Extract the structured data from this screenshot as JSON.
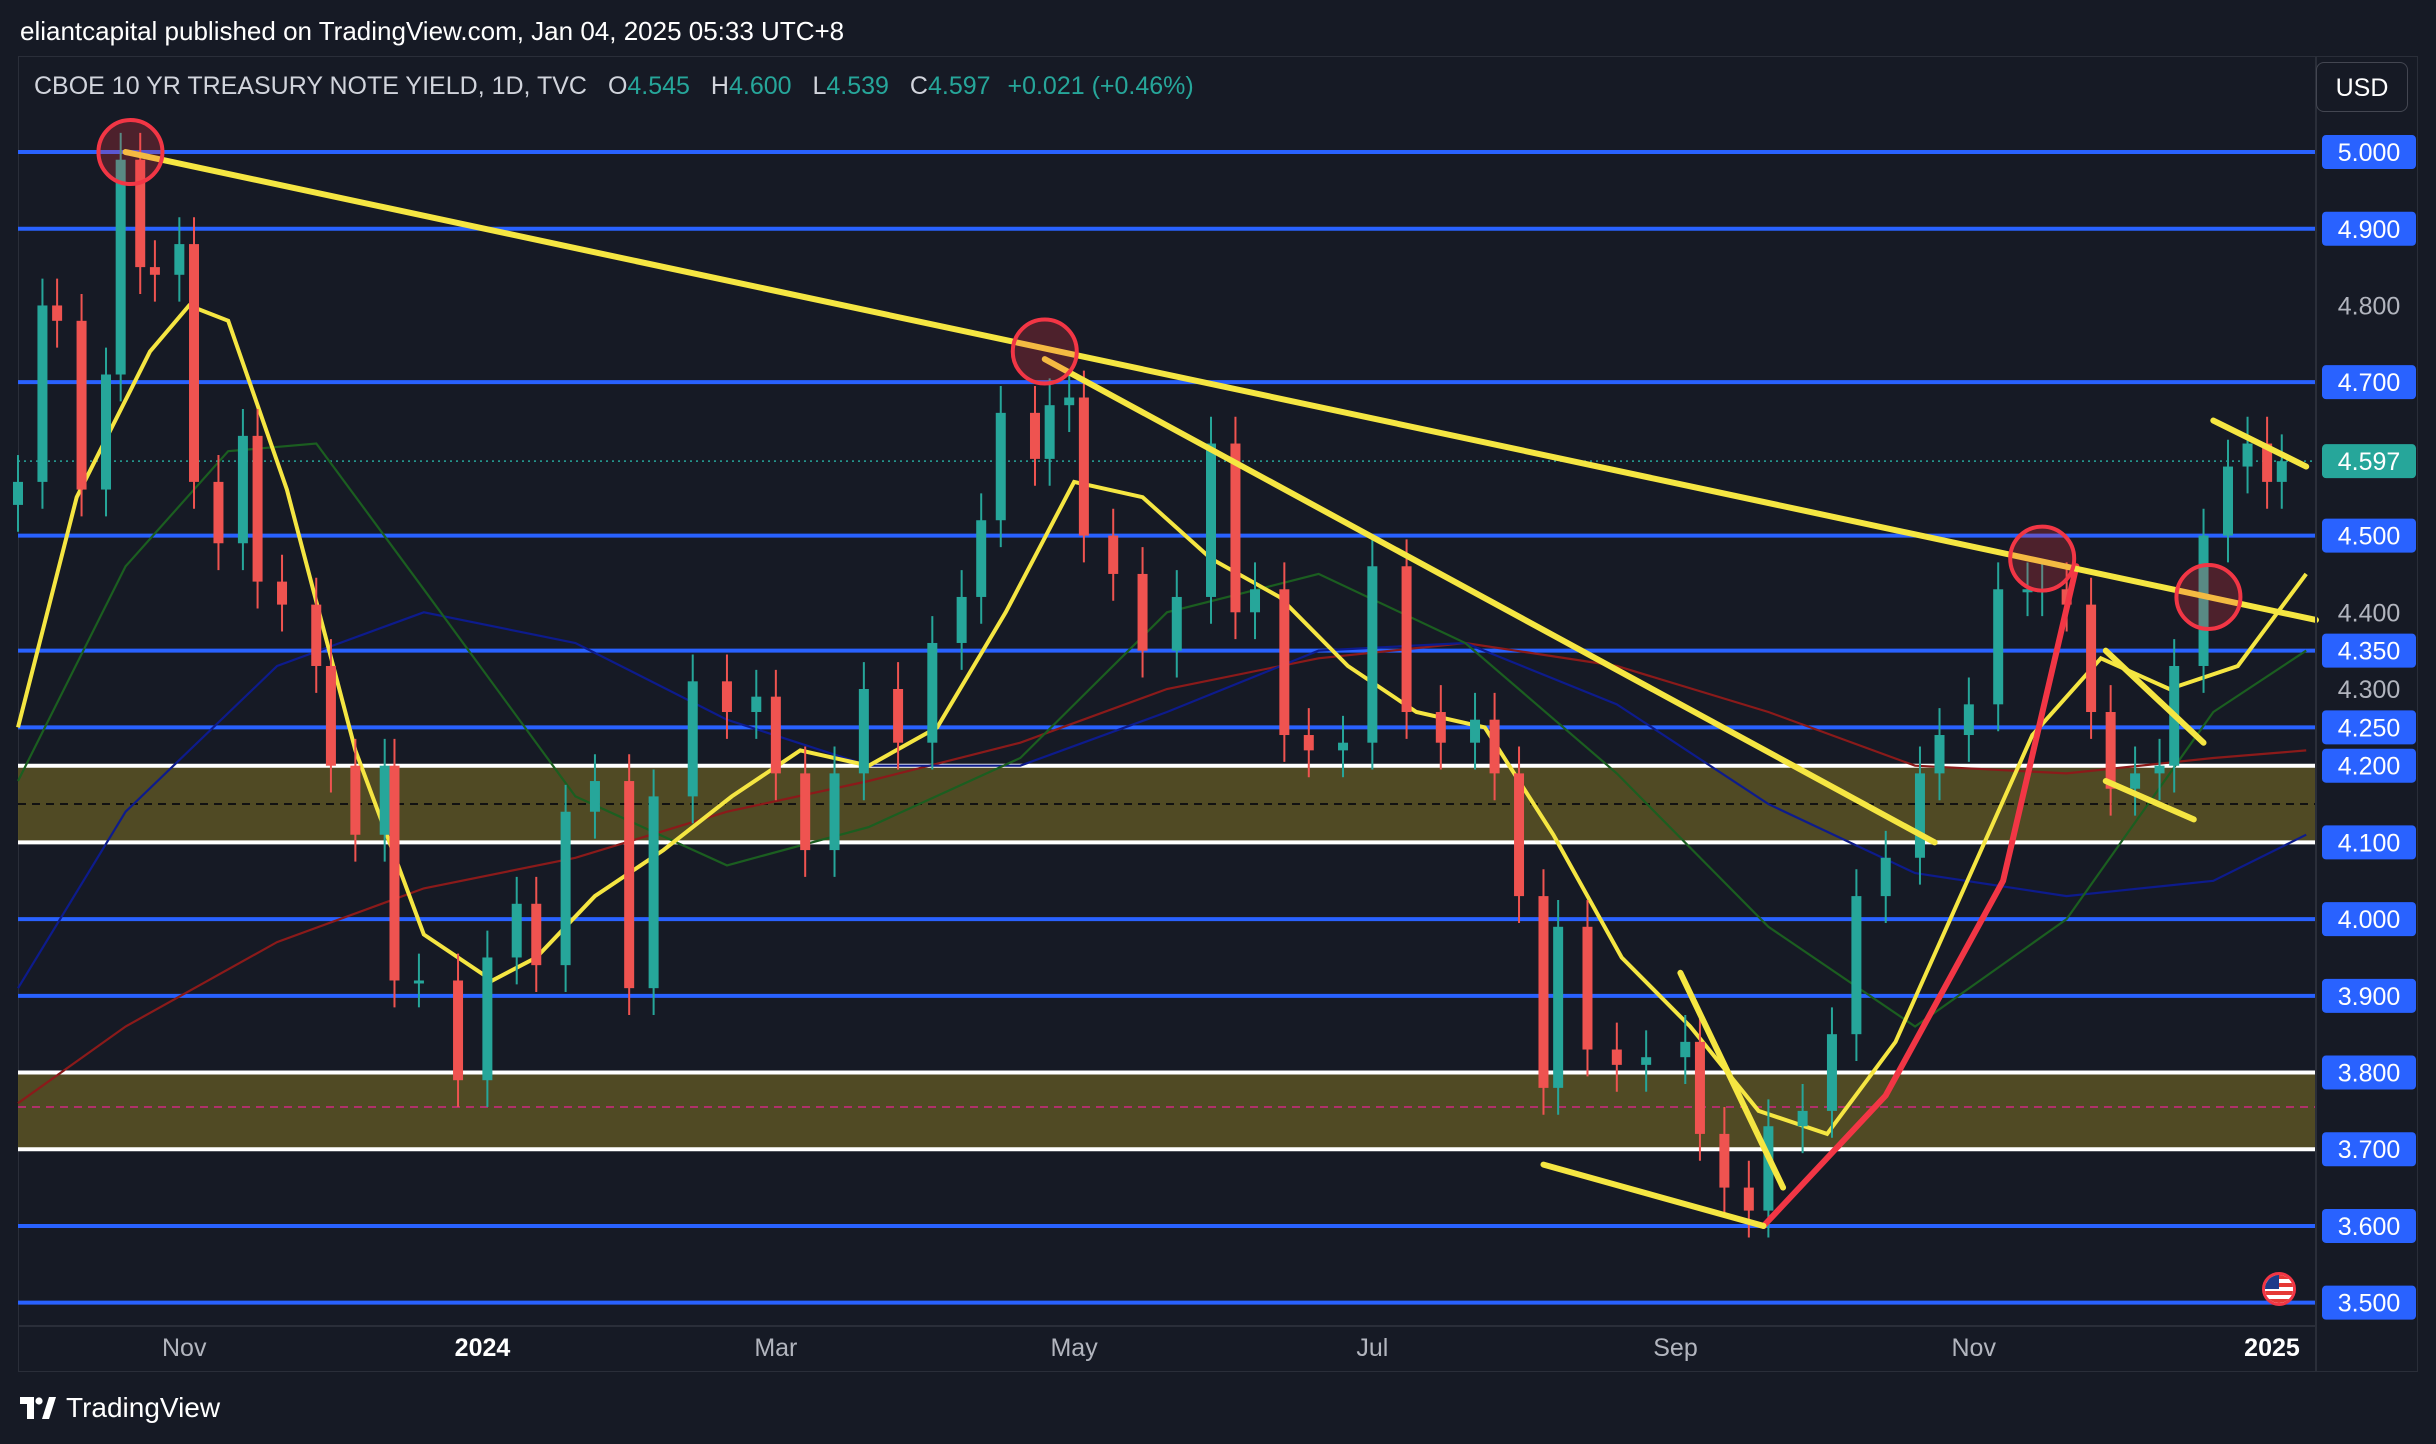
{
  "header": {
    "publisher": "eliantcapital published on TradingView.com, Jan 04, 2025 05:33 UTC+8"
  },
  "legend": {
    "symbol": "CBOE 10 YR TREASURY NOTE YIELD, 1D, TVC",
    "o_label": "O",
    "o": "4.545",
    "h_label": "H",
    "h": "4.600",
    "l_label": "L",
    "l": "4.539",
    "c_label": "C",
    "c": "4.597",
    "change": "+0.021 (+0.46%)"
  },
  "currency": "USD",
  "footer": {
    "brand": "TradingView"
  },
  "flag_icon": "us-flag-icon",
  "colors": {
    "background": "#161a25",
    "support_line": "#2962ff",
    "trendline": "#f5e642",
    "ma_fast": "#f5e642",
    "ma_green": "#1b5e20",
    "ma_blue": "#0d1b8c",
    "ma_red": "#8b1a1a",
    "up": "#26a69a",
    "down": "#ef5350",
    "zone": "#5a5325",
    "curve_red": "#f23645",
    "price_tag": "#26a69a"
  },
  "chart_data": {
    "type": "candlestick",
    "title": "CBOE 10 YR TREASURY NOTE YIELD, 1D, TVC",
    "x_ticks": [
      "Nov",
      "2024",
      "Mar",
      "May",
      "Jul",
      "Sep",
      "Nov",
      "2025"
    ],
    "x_tick_dates": [
      "2023-11-01",
      "2024-01-01",
      "2024-03-01",
      "2024-05-01",
      "2024-07-01",
      "2024-09-01",
      "2024-11-01",
      "2025-01-01"
    ],
    "x_range": [
      "2023-09-28",
      "2025-01-10"
    ],
    "y_range": [
      3.48,
      5.12
    ],
    "y_ticks": [
      "5.000",
      "4.900",
      "4.800",
      "4.700",
      "4.500",
      "4.400",
      "4.350",
      "4.300",
      "4.250",
      "4.200",
      "4.100",
      "4.000",
      "3.900",
      "3.800",
      "3.700",
      "3.600",
      "3.500"
    ],
    "y_tick_values": [
      5.0,
      4.9,
      4.8,
      4.7,
      4.5,
      4.4,
      4.35,
      4.3,
      4.25,
      4.2,
      4.1,
      4.0,
      3.9,
      3.8,
      3.7,
      3.6,
      3.5
    ],
    "y_tick_highlighted": [
      5.0,
      4.9,
      4.7,
      4.5,
      4.35,
      4.25,
      4.2,
      4.1,
      4.0,
      3.9,
      3.8,
      3.7,
      3.6,
      3.5
    ],
    "last_price": {
      "value": 4.597,
      "label": "4.597"
    },
    "horizontal_levels": [
      5.0,
      4.9,
      4.7,
      4.5,
      4.35,
      4.25,
      4.0,
      3.9,
      3.6,
      3.5
    ],
    "zones": [
      {
        "top": 4.2,
        "bottom": 4.1,
        "mid": 4.15
      },
      {
        "top": 3.8,
        "bottom": 3.7,
        "mid": 3.755
      }
    ],
    "trendlines": [
      {
        "from": [
          "2023-10-20",
          5.0
        ],
        "to": [
          "2025-01-10",
          4.39
        ]
      },
      {
        "from": [
          "2024-04-25",
          4.73
        ],
        "to": [
          "2024-10-24",
          4.1
        ]
      },
      {
        "from": [
          "2024-08-05",
          3.68
        ],
        "to": [
          "2024-09-19",
          3.6
        ]
      },
      {
        "from": [
          "2024-09-02",
          3.93
        ],
        "to": [
          "2024-09-23",
          3.65
        ]
      },
      {
        "from": [
          "2024-11-28",
          4.35
        ],
        "to": [
          "2024-12-18",
          4.23
        ]
      },
      {
        "from": [
          "2024-11-28",
          4.18
        ],
        "to": [
          "2024-12-16",
          4.13
        ]
      },
      {
        "from": [
          "2024-12-20",
          4.65
        ],
        "to": [
          "2025-01-08",
          4.59
        ]
      }
    ],
    "curve": [
      [
        "2024-09-19",
        3.6
      ],
      [
        "2024-10-14",
        3.77
      ],
      [
        "2024-11-07",
        4.05
      ],
      [
        "2024-11-22",
        4.46
      ]
    ],
    "circles": [
      [
        "2023-10-21",
        5.0
      ],
      [
        "2024-04-25",
        4.74
      ],
      [
        "2024-11-15",
        4.47
      ],
      [
        "2024-12-19",
        4.42
      ]
    ],
    "ohlc_closes": [
      [
        "2023-09-28",
        4.57
      ],
      [
        "2023-10-03",
        4.8
      ],
      [
        "2023-10-06",
        4.78
      ],
      [
        "2023-10-11",
        4.56
      ],
      [
        "2023-10-16",
        4.71
      ],
      [
        "2023-10-19",
        4.99
      ],
      [
        "2023-10-23",
        4.85
      ],
      [
        "2023-10-26",
        4.84
      ],
      [
        "2023-10-31",
        4.88
      ],
      [
        "2023-11-03",
        4.57
      ],
      [
        "2023-11-08",
        4.49
      ],
      [
        "2023-11-13",
        4.63
      ],
      [
        "2023-11-16",
        4.44
      ],
      [
        "2023-11-21",
        4.41
      ],
      [
        "2023-11-28",
        4.33
      ],
      [
        "2023-12-01",
        4.2
      ],
      [
        "2023-12-06",
        4.11
      ],
      [
        "2023-12-12",
        4.2
      ],
      [
        "2023-12-14",
        3.92
      ],
      [
        "2023-12-19",
        3.92
      ],
      [
        "2023-12-27",
        3.79
      ],
      [
        "2024-01-02",
        3.95
      ],
      [
        "2024-01-08",
        4.02
      ],
      [
        "2024-01-12",
        3.94
      ],
      [
        "2024-01-18",
        4.14
      ],
      [
        "2024-01-24",
        4.18
      ],
      [
        "2024-01-31",
        3.91
      ],
      [
        "2024-02-05",
        4.16
      ],
      [
        "2024-02-13",
        4.31
      ],
      [
        "2024-02-20",
        4.27
      ],
      [
        "2024-02-26",
        4.29
      ],
      [
        "2024-03-01",
        4.19
      ],
      [
        "2024-03-07",
        4.09
      ],
      [
        "2024-03-13",
        4.19
      ],
      [
        "2024-03-19",
        4.3
      ],
      [
        "2024-03-26",
        4.23
      ],
      [
        "2024-04-02",
        4.36
      ],
      [
        "2024-04-08",
        4.42
      ],
      [
        "2024-04-12",
        4.52
      ],
      [
        "2024-04-16",
        4.66
      ],
      [
        "2024-04-23",
        4.6
      ],
      [
        "2024-04-26",
        4.67
      ],
      [
        "2024-04-30",
        4.68
      ],
      [
        "2024-05-03",
        4.5
      ],
      [
        "2024-05-09",
        4.45
      ],
      [
        "2024-05-15",
        4.35
      ],
      [
        "2024-05-22",
        4.42
      ],
      [
        "2024-05-29",
        4.62
      ],
      [
        "2024-06-03",
        4.4
      ],
      [
        "2024-06-07",
        4.43
      ],
      [
        "2024-06-13",
        4.24
      ],
      [
        "2024-06-18",
        4.22
      ],
      [
        "2024-06-25",
        4.23
      ],
      [
        "2024-07-01",
        4.46
      ],
      [
        "2024-07-08",
        4.27
      ],
      [
        "2024-07-15",
        4.23
      ],
      [
        "2024-07-22",
        4.26
      ],
      [
        "2024-07-26",
        4.19
      ],
      [
        "2024-07-31",
        4.03
      ],
      [
        "2024-08-05",
        3.78
      ],
      [
        "2024-08-08",
        3.99
      ],
      [
        "2024-08-14",
        3.83
      ],
      [
        "2024-08-20",
        3.81
      ],
      [
        "2024-08-26",
        3.82
      ],
      [
        "2024-09-03",
        3.84
      ],
      [
        "2024-09-06",
        3.72
      ],
      [
        "2024-09-11",
        3.65
      ],
      [
        "2024-09-16",
        3.62
      ],
      [
        "2024-09-20",
        3.73
      ],
      [
        "2024-09-27",
        3.75
      ],
      [
        "2024-10-03",
        3.85
      ],
      [
        "2024-10-08",
        4.03
      ],
      [
        "2024-10-14",
        4.08
      ],
      [
        "2024-10-21",
        4.19
      ],
      [
        "2024-10-25",
        4.24
      ],
      [
        "2024-10-31",
        4.28
      ],
      [
        "2024-11-06",
        4.43
      ],
      [
        "2024-11-12",
        4.43
      ],
      [
        "2024-11-15",
        4.43
      ],
      [
        "2024-11-20",
        4.41
      ],
      [
        "2024-11-25",
        4.27
      ],
      [
        "2024-11-29",
        4.17
      ],
      [
        "2024-12-04",
        4.19
      ],
      [
        "2024-12-09",
        4.2
      ],
      [
        "2024-12-12",
        4.33
      ],
      [
        "2024-12-18",
        4.5
      ],
      [
        "2024-12-23",
        4.59
      ],
      [
        "2024-12-27",
        4.62
      ],
      [
        "2024-12-31",
        4.57
      ],
      [
        "2025-01-03",
        4.597
      ]
    ],
    "moving_averages": [
      {
        "name": "",
        "color": "#f5e642",
        "points": [
          [
            "2023-09-28",
            4.25
          ],
          [
            "2023-10-10",
            4.55
          ],
          [
            "2023-10-25",
            4.74
          ],
          [
            "2023-11-02",
            4.8
          ],
          [
            "2023-11-10",
            4.78
          ],
          [
            "2023-11-22",
            4.56
          ],
          [
            "2023-12-06",
            4.22
          ],
          [
            "2023-12-20",
            3.98
          ],
          [
            "2024-01-03",
            3.92
          ],
          [
            "2024-01-12",
            3.95
          ],
          [
            "2024-01-24",
            4.03
          ],
          [
            "2024-02-07",
            4.09
          ],
          [
            "2024-02-21",
            4.16
          ],
          [
            "2024-03-06",
            4.22
          ],
          [
            "2024-03-20",
            4.2
          ],
          [
            "2024-04-03",
            4.25
          ],
          [
            "2024-04-17",
            4.4
          ],
          [
            "2024-05-01",
            4.57
          ],
          [
            "2024-05-15",
            4.55
          ],
          [
            "2024-05-29",
            4.47
          ],
          [
            "2024-06-12",
            4.42
          ],
          [
            "2024-06-26",
            4.33
          ],
          [
            "2024-07-10",
            4.27
          ],
          [
            "2024-07-24",
            4.25
          ],
          [
            "2024-08-07",
            4.11
          ],
          [
            "2024-08-21",
            3.95
          ],
          [
            "2024-09-04",
            3.86
          ],
          [
            "2024-09-18",
            3.75
          ],
          [
            "2024-10-02",
            3.72
          ],
          [
            "2024-10-16",
            3.84
          ],
          [
            "2024-10-30",
            4.04
          ],
          [
            "2024-11-13",
            4.24
          ],
          [
            "2024-11-27",
            4.34
          ],
          [
            "2024-12-11",
            4.3
          ],
          [
            "2024-12-25",
            4.33
          ],
          [
            "2025-01-08",
            4.45
          ]
        ]
      },
      {
        "name": "",
        "color": "#1b5e20",
        "points": [
          [
            "2023-09-28",
            4.18
          ],
          [
            "2023-10-20",
            4.46
          ],
          [
            "2023-11-10",
            4.61
          ],
          [
            "2023-11-28",
            4.62
          ],
          [
            "2023-12-20",
            4.43
          ],
          [
            "2024-01-20",
            4.16
          ],
          [
            "2024-02-20",
            4.07
          ],
          [
            "2024-03-20",
            4.12
          ],
          [
            "2024-04-20",
            4.21
          ],
          [
            "2024-05-20",
            4.4
          ],
          [
            "2024-06-20",
            4.45
          ],
          [
            "2024-07-20",
            4.36
          ],
          [
            "2024-08-20",
            4.19
          ],
          [
            "2024-09-20",
            3.99
          ],
          [
            "2024-10-20",
            3.86
          ],
          [
            "2024-11-20",
            4.0
          ],
          [
            "2024-12-20",
            4.27
          ],
          [
            "2025-01-08",
            4.35
          ]
        ]
      },
      {
        "name": "",
        "color": "#0d1b8c",
        "points": [
          [
            "2023-09-28",
            3.91
          ],
          [
            "2023-10-20",
            4.14
          ],
          [
            "2023-11-20",
            4.33
          ],
          [
            "2023-12-20",
            4.4
          ],
          [
            "2024-01-20",
            4.36
          ],
          [
            "2024-02-20",
            4.26
          ],
          [
            "2024-03-20",
            4.2
          ],
          [
            "2024-04-20",
            4.2
          ],
          [
            "2024-05-20",
            4.27
          ],
          [
            "2024-06-20",
            4.35
          ],
          [
            "2024-07-20",
            4.36
          ],
          [
            "2024-08-20",
            4.28
          ],
          [
            "2024-09-20",
            4.15
          ],
          [
            "2024-10-20",
            4.06
          ],
          [
            "2024-11-20",
            4.03
          ],
          [
            "2024-12-20",
            4.05
          ],
          [
            "2025-01-08",
            4.11
          ]
        ]
      },
      {
        "name": "",
        "color": "#8b1a1a",
        "points": [
          [
            "2023-09-28",
            3.76
          ],
          [
            "2023-10-20",
            3.86
          ],
          [
            "2023-11-20",
            3.97
          ],
          [
            "2023-12-20",
            4.04
          ],
          [
            "2024-01-20",
            4.08
          ],
          [
            "2024-02-20",
            4.14
          ],
          [
            "2024-03-20",
            4.18
          ],
          [
            "2024-04-20",
            4.23
          ],
          [
            "2024-05-20",
            4.3
          ],
          [
            "2024-06-20",
            4.34
          ],
          [
            "2024-07-20",
            4.36
          ],
          [
            "2024-08-20",
            4.33
          ],
          [
            "2024-09-20",
            4.27
          ],
          [
            "2024-10-20",
            4.2
          ],
          [
            "2024-11-20",
            4.19
          ],
          [
            "2024-12-20",
            4.21
          ],
          [
            "2025-01-08",
            4.22
          ]
        ]
      }
    ]
  }
}
